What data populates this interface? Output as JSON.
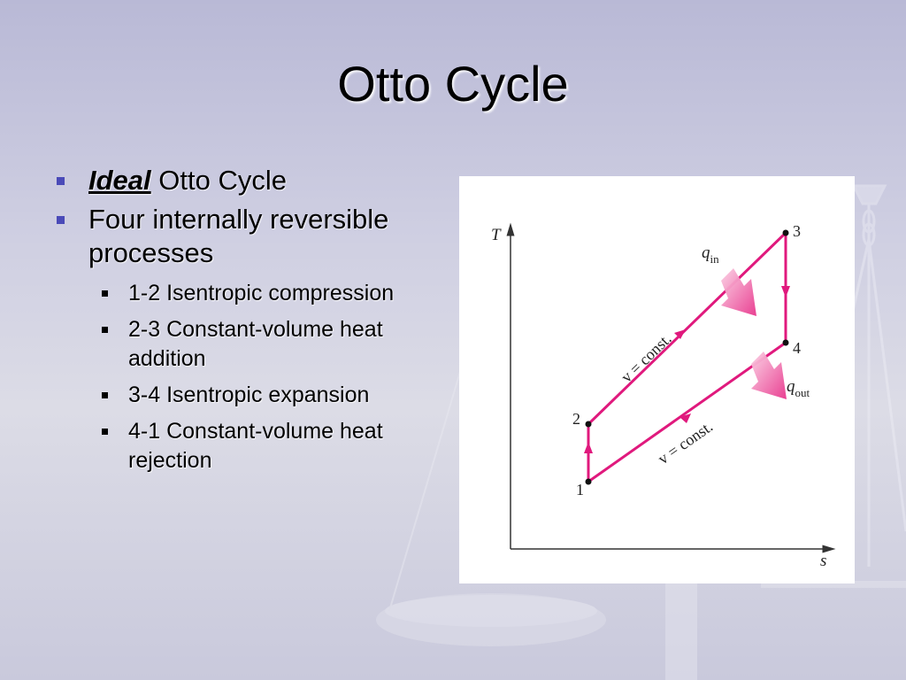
{
  "slide": {
    "title": "Otto Cycle",
    "bullets": [
      {
        "emphasis": "Ideal",
        "text": " Otto Cycle"
      },
      {
        "text": "Four internally reversible processes"
      }
    ],
    "sub_bullets": [
      "1-2 Isentropic compression",
      "2-3 Constant-volume heat addition",
      "3-4 Isentropic expansion",
      "4-1 Constant-volume heat rejection"
    ]
  },
  "diagram": {
    "axis_y": "T",
    "axis_x": "s",
    "points": [
      "1",
      "2",
      "3",
      "4"
    ],
    "q_in": "q",
    "q_in_sub": "in",
    "q_out": "q",
    "q_out_sub": "out",
    "upper_line_label": "v = const.",
    "lower_line_label": "v = const.",
    "line_color": "#e0197d"
  }
}
